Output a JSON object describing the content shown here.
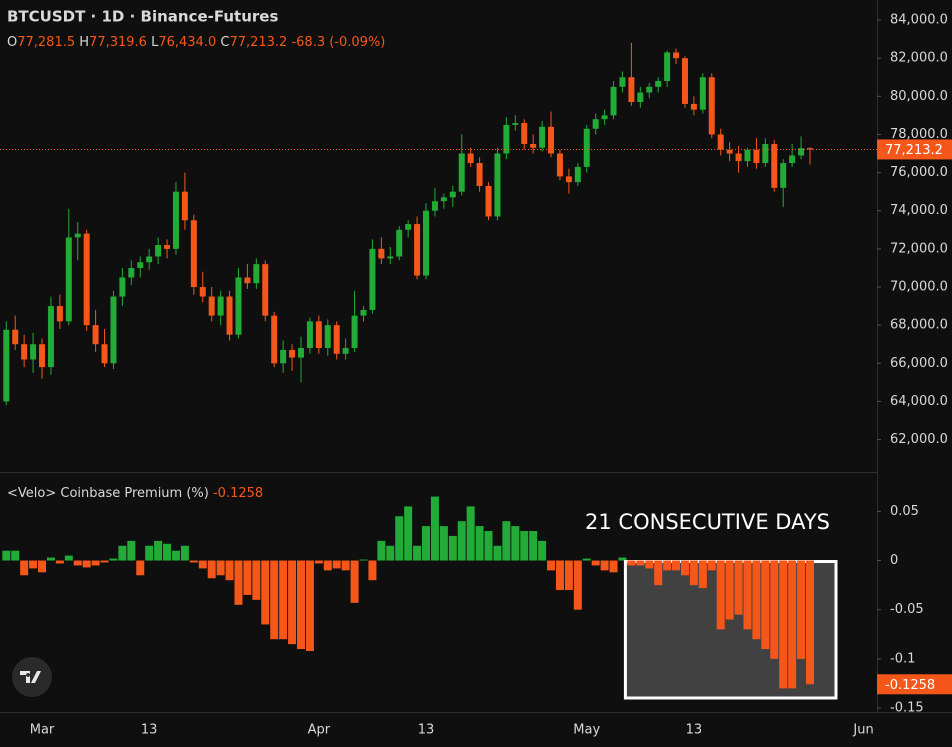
{
  "chart_data": [
    {
      "type": "candlestick",
      "title": "BTCUSDT · 1D · Binance-Futures",
      "ohlc_legend": [
        {
          "label": "O",
          "value": "77,281.5"
        },
        {
          "label": "H",
          "value": "77,319.6"
        },
        {
          "label": "L",
          "value": "76,434.0"
        },
        {
          "label": "C",
          "value": "77,213.2"
        }
      ],
      "change": "-68.3 (-0.09%)",
      "last_label": "77,213.2",
      "colors": {
        "up": "#22ab36",
        "down": "#f5571a"
      },
      "categories": [
        null,
        null,
        null,
        null,
        "Mar",
        null,
        null,
        null,
        null,
        null,
        null,
        null,
        null,
        null,
        null,
        null,
        "13",
        null,
        null,
        null,
        null,
        null,
        null,
        null,
        null,
        null,
        null,
        null,
        null,
        null,
        null,
        null,
        null,
        null,
        null,
        "Apr",
        null,
        null,
        null,
        null,
        null,
        null,
        null,
        null,
        null,
        null,
        null,
        "13",
        null,
        null,
        null,
        null,
        null,
        null,
        null,
        null,
        null,
        null,
        null,
        null,
        null,
        null,
        null,
        null,
        null,
        "May",
        null,
        null,
        null,
        null,
        null,
        null,
        null,
        null,
        null,
        null,
        null,
        "13",
        null,
        null,
        null,
        null,
        null,
        null,
        null,
        null,
        null,
        null,
        null,
        null,
        null,
        null,
        null,
        null,
        null,
        null,
        "Jun"
      ],
      "ohlc": [
        [
          64000,
          68200,
          63800,
          67760
        ],
        [
          67760,
          68500,
          66700,
          67000
        ],
        [
          67000,
          67500,
          65800,
          66200
        ],
        [
          66200,
          67600,
          65500,
          67000
        ],
        [
          67000,
          67300,
          65200,
          65800
        ],
        [
          65800,
          69500,
          65400,
          69000
        ],
        [
          69000,
          69600,
          67800,
          68200
        ],
        [
          68200,
          74100,
          68000,
          72600
        ],
        [
          72600,
          73400,
          71400,
          72800
        ],
        [
          72800,
          73000,
          67700,
          68000
        ],
        [
          68000,
          68800,
          66600,
          67000
        ],
        [
          67000,
          67800,
          65800,
          66000
        ],
        [
          66000,
          69800,
          65700,
          69500
        ],
        [
          69500,
          71000,
          69000,
          70500
        ],
        [
          70500,
          71400,
          70100,
          71000
        ],
        [
          71000,
          71600,
          70500,
          71300
        ],
        [
          71300,
          72000,
          70900,
          71600
        ],
        [
          71600,
          72600,
          71200,
          72200
        ],
        [
          72200,
          72500,
          71500,
          72000
        ],
        [
          72000,
          75500,
          71700,
          75000
        ],
        [
          75000,
          76000,
          73000,
          73500
        ],
        [
          73500,
          73800,
          69600,
          70000
        ],
        [
          70000,
          70800,
          69200,
          69500
        ],
        [
          69500,
          70000,
          68200,
          68500
        ],
        [
          68500,
          69800,
          68000,
          69500
        ],
        [
          69500,
          69800,
          67200,
          67500
        ],
        [
          67500,
          71000,
          67300,
          70500
        ],
        [
          70500,
          71200,
          69900,
          70200
        ],
        [
          70200,
          71500,
          69900,
          71200
        ],
        [
          71200,
          71400,
          68200,
          68500
        ],
        [
          68500,
          68700,
          65800,
          66000
        ],
        [
          66000,
          67200,
          65500,
          66700
        ],
        [
          66700,
          67000,
          65600,
          66300
        ],
        [
          66300,
          67400,
          65000,
          66800
        ],
        [
          66800,
          68400,
          66500,
          68200
        ],
        [
          68200,
          68500,
          66500,
          66800
        ],
        [
          66800,
          68300,
          66400,
          68000
        ],
        [
          68000,
          68200,
          66200,
          66500
        ],
        [
          66500,
          67300,
          66200,
          66800
        ],
        [
          66800,
          69800,
          66600,
          68500
        ],
        [
          68500,
          69000,
          68200,
          68800
        ],
        [
          68800,
          72500,
          68600,
          72000
        ],
        [
          72000,
          72600,
          71200,
          71500
        ],
        [
          71500,
          72100,
          71200,
          71600
        ],
        [
          71600,
          73200,
          71400,
          73000
        ],
        [
          73000,
          73500,
          72600,
          73300
        ],
        [
          73300,
          73700,
          70400,
          70600
        ],
        [
          70600,
          74400,
          70400,
          74000
        ],
        [
          74000,
          75200,
          73700,
          74500
        ],
        [
          74500,
          74900,
          74100,
          74700
        ],
        [
          74700,
          75300,
          74200,
          75000
        ],
        [
          75000,
          78000,
          74800,
          77000
        ],
        [
          77000,
          77300,
          76300,
          76500
        ],
        [
          76500,
          76800,
          75000,
          75300
        ],
        [
          75300,
          75500,
          73500,
          73700
        ],
        [
          73700,
          77300,
          73500,
          77000
        ],
        [
          77000,
          78900,
          76700,
          78500
        ],
        [
          78500,
          79000,
          78200,
          78600
        ],
        [
          78600,
          78800,
          77200,
          77500
        ],
        [
          77500,
          78000,
          77000,
          77300
        ],
        [
          77300,
          78700,
          77100,
          78400
        ],
        [
          78400,
          79200,
          76800,
          77000
        ],
        [
          77000,
          77200,
          75600,
          75800
        ],
        [
          75800,
          76200,
          74900,
          75500
        ],
        [
          75500,
          76500,
          75300,
          76300
        ],
        [
          76300,
          78500,
          76000,
          78300
        ],
        [
          78300,
          79100,
          78000,
          78800
        ],
        [
          78800,
          79300,
          78500,
          79000
        ],
        [
          79000,
          80800,
          78800,
          80500
        ],
        [
          80500,
          81300,
          80200,
          81000
        ],
        [
          81000,
          82800,
          79500,
          79700
        ],
        [
          79700,
          80500,
          79400,
          80200
        ],
        [
          80200,
          80700,
          79900,
          80500
        ],
        [
          80500,
          81000,
          80200,
          80800
        ],
        [
          80800,
          82400,
          80500,
          82300
        ],
        [
          82300,
          82500,
          81700,
          82000
        ],
        [
          82000,
          82100,
          79400,
          79600
        ],
        [
          79600,
          80000,
          79000,
          79300
        ],
        [
          79300,
          81200,
          79100,
          81000
        ],
        [
          81000,
          81200,
          77800,
          78000
        ],
        [
          78000,
          78300,
          76900,
          77200
        ],
        [
          77200,
          77600,
          76600,
          77000
        ],
        [
          77000,
          77400,
          76000,
          76600
        ],
        [
          76600,
          77300,
          76300,
          77200
        ],
        [
          77200,
          77800,
          76200,
          76500
        ],
        [
          76500,
          77800,
          76300,
          77500
        ],
        [
          77500,
          77700,
          75000,
          75200
        ],
        [
          75200,
          76700,
          74200,
          76500
        ],
        [
          76500,
          77500,
          76300,
          76900
        ],
        [
          76900,
          77900,
          76700,
          77281.5
        ],
        [
          77281.5,
          77319.6,
          76434,
          77213.2
        ],
        null,
        null,
        null,
        null,
        null,
        null
      ],
      "ylim": [
        60300,
        85050
      ],
      "yticks": [
        {
          "value": 62000,
          "label": "62,000.0"
        },
        {
          "value": 64000,
          "label": "64,000.0"
        },
        {
          "value": 66000,
          "label": "66,000.0"
        },
        {
          "value": 68000,
          "label": "68,000.0"
        },
        {
          "value": 70000,
          "label": "70,000.0"
        },
        {
          "value": 72000,
          "label": "72,000.0"
        },
        {
          "value": 74000,
          "label": "74,000.0"
        },
        {
          "value": 76000,
          "label": "76,000.0"
        },
        {
          "value": 78000,
          "label": "78,000.0"
        },
        {
          "value": 80000,
          "label": "80,000.0"
        },
        {
          "value": 82000,
          "label": "82,000.0"
        },
        {
          "value": 84000,
          "label": "84,000.0"
        }
      ]
    },
    {
      "type": "bar",
      "title": "<Velo> Coinbase Premium (%)",
      "value_label": "-0.1258",
      "annotation": "21 CONSECUTIVE DAYS",
      "values": [
        0.01,
        0.01,
        -0.015,
        -0.008,
        -0.012,
        0.003,
        -0.003,
        0.005,
        -0.005,
        -0.007,
        -0.005,
        -0.002,
        0.002,
        0.015,
        0.02,
        -0.015,
        0.015,
        0.02,
        0.017,
        0.01,
        0.015,
        -0.002,
        -0.008,
        -0.018,
        -0.015,
        -0.02,
        -0.045,
        -0.035,
        -0.04,
        -0.065,
        -0.08,
        -0.08,
        -0.085,
        -0.09,
        -0.092,
        -0.003,
        -0.01,
        -0.008,
        -0.01,
        -0.043,
        0.001,
        -0.02,
        0.02,
        0.015,
        0.045,
        0.055,
        0.015,
        0.035,
        0.065,
        0.035,
        0.025,
        0.04,
        0.055,
        0.035,
        0.03,
        0.015,
        0.04,
        0.035,
        0.03,
        0.03,
        0.02,
        -0.01,
        -0.03,
        -0.03,
        -0.05,
        0.002,
        -0.005,
        -0.01,
        -0.012,
        0.003,
        -0.005,
        -0.005,
        -0.008,
        -0.025,
        -0.01,
        -0.01,
        -0.015,
        -0.025,
        -0.028,
        -0.01,
        -0.07,
        -0.06,
        -0.055,
        -0.07,
        -0.08,
        -0.09,
        -0.1,
        -0.13,
        -0.13,
        -0.1,
        -0.1258,
        null,
        null,
        null,
        null,
        null,
        null
      ],
      "ylim": [
        -0.154,
        0.09
      ],
      "yticks": [
        0.05,
        0,
        -0.05,
        -0.1,
        -0.15
      ]
    }
  ]
}
